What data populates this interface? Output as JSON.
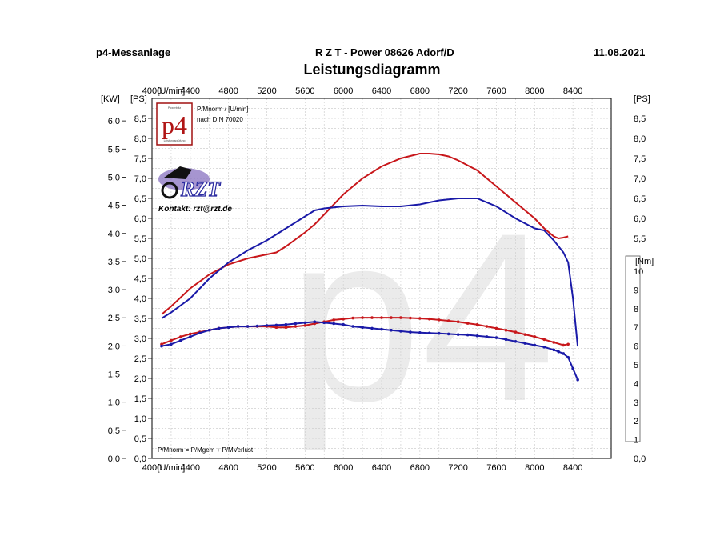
{
  "header": {
    "left": "p4-Messanlage",
    "center": "R Z T - Power   08626 Adorf/D",
    "right": "11.08.2021",
    "title": "Leistungsdiagramm"
  },
  "logo": {
    "p4_text": "p4",
    "p4_small_top": "Powerblitz",
    "p4_small_bottom": "Leistungsprüfung",
    "p4_note_line1": "P/Mnorm / [U/min]",
    "p4_note_line2": "nach DIN 70020",
    "rzt_text": "RZT",
    "contact": "Kontakt: rzt@rzt.de",
    "watermark": "p4"
  },
  "footer_note": "P/Mnorm = P/Mgem + P/MVerlust",
  "chart_data": {
    "type": "line",
    "title": "Leistungsdiagramm",
    "xlabel": "[U/min]",
    "x_unit_label": "[U/min]",
    "xlim": [
      4000,
      8800
    ],
    "x_ticks": [
      4000,
      4400,
      4800,
      5200,
      5600,
      6000,
      6400,
      6800,
      7200,
      7600,
      8000,
      8400
    ],
    "y_left_kw": {
      "label": "[KW]",
      "ylim": [
        0,
        6.4
      ],
      "ticks": [
        "0,0",
        "0,5",
        "1,0",
        "1,5",
        "2,0",
        "2,5",
        "3,0",
        "3,5",
        "4,0",
        "4,5",
        "5,0",
        "5,5",
        "6,0"
      ]
    },
    "y_left_ps": {
      "label": "[PS]",
      "ylim": [
        0,
        9.0
      ],
      "ticks": [
        "0,0",
        "0,5",
        "1,0",
        "1,5",
        "2,0",
        "2,5",
        "3,0",
        "3,5",
        "4,0",
        "4,5",
        "5,0",
        "5,5",
        "6,0",
        "6,5",
        "7,0",
        "7,5",
        "8,0",
        "8,5"
      ]
    },
    "y_right_top": {
      "label": "[PS]",
      "ticks": [
        "5,5",
        "6,0",
        "6,5",
        "7,0",
        "7,5",
        "8,0",
        "8,5"
      ]
    },
    "y_right_bottom": {
      "label": "[Nm]",
      "ticks": [
        "0,0",
        "1",
        "2",
        "3",
        "4",
        "5",
        "6",
        "7",
        "8",
        "9",
        "10"
      ]
    },
    "grid": true,
    "power_series": [
      {
        "color": "#c8171b",
        "unit": "PS",
        "x": [
          4100,
          4200,
          4400,
          4600,
          4800,
          5000,
          5200,
          5300,
          5400,
          5600,
          5700,
          5800,
          6000,
          6200,
          6400,
          6600,
          6800,
          6900,
          7000,
          7100,
          7200,
          7400,
          7600,
          7800,
          8000,
          8100,
          8200,
          8250,
          8300,
          8350
        ],
        "y": [
          3.6,
          3.8,
          4.25,
          4.6,
          4.85,
          5.0,
          5.1,
          5.15,
          5.3,
          5.65,
          5.85,
          6.1,
          6.6,
          7.0,
          7.3,
          7.5,
          7.62,
          7.62,
          7.6,
          7.55,
          7.45,
          7.2,
          6.8,
          6.4,
          6.0,
          5.75,
          5.55,
          5.5,
          5.52,
          5.55
        ]
      },
      {
        "color": "#1a1aa8",
        "unit": "PS",
        "x": [
          4100,
          4200,
          4400,
          4600,
          4800,
          5000,
          5200,
          5400,
          5600,
          5700,
          5800,
          6000,
          6200,
          6400,
          6600,
          6800,
          7000,
          7200,
          7400,
          7600,
          7800,
          8000,
          8100,
          8200,
          8300,
          8350,
          8400,
          8450
        ],
        "y": [
          3.5,
          3.65,
          4.0,
          4.5,
          4.9,
          5.2,
          5.45,
          5.75,
          6.05,
          6.2,
          6.25,
          6.3,
          6.32,
          6.3,
          6.3,
          6.35,
          6.45,
          6.5,
          6.5,
          6.3,
          6.0,
          5.75,
          5.7,
          5.45,
          5.15,
          4.9,
          4.0,
          2.8
        ]
      }
    ],
    "torque_series": [
      {
        "color": "#c8171b",
        "unit": "Nm",
        "x": [
          4100,
          4200,
          4300,
          4400,
          4500,
          4600,
          4700,
          4800,
          4900,
          5000,
          5100,
          5200,
          5300,
          5400,
          5500,
          5600,
          5700,
          5800,
          5900,
          6000,
          6100,
          6200,
          6300,
          6400,
          6500,
          6600,
          6700,
          6800,
          6900,
          7000,
          7100,
          7200,
          7300,
          7400,
          7500,
          7600,
          7700,
          7800,
          7900,
          8000,
          8100,
          8200,
          8300,
          8350
        ],
        "y": [
          6.1,
          6.3,
          6.5,
          6.65,
          6.75,
          6.85,
          6.95,
          7.0,
          7.05,
          7.05,
          7.05,
          7.05,
          7.0,
          7.0,
          7.05,
          7.1,
          7.2,
          7.3,
          7.4,
          7.45,
          7.5,
          7.52,
          7.52,
          7.52,
          7.52,
          7.52,
          7.5,
          7.48,
          7.45,
          7.4,
          7.35,
          7.3,
          7.22,
          7.15,
          7.05,
          6.95,
          6.85,
          6.75,
          6.62,
          6.5,
          6.35,
          6.2,
          6.05,
          6.1
        ]
      },
      {
        "color": "#1a1aa8",
        "unit": "Nm",
        "x": [
          4100,
          4200,
          4300,
          4400,
          4500,
          4600,
          4700,
          4800,
          4900,
          5000,
          5100,
          5200,
          5300,
          5400,
          5500,
          5600,
          5700,
          5800,
          5900,
          6000,
          6100,
          6200,
          6300,
          6400,
          6500,
          6600,
          6700,
          6800,
          6900,
          7000,
          7100,
          7200,
          7300,
          7400,
          7500,
          7600,
          7700,
          7800,
          7900,
          8000,
          8100,
          8200,
          8250,
          8300,
          8350,
          8400,
          8450
        ],
        "y": [
          6.0,
          6.1,
          6.3,
          6.5,
          6.7,
          6.85,
          6.95,
          7.0,
          7.05,
          7.05,
          7.07,
          7.1,
          7.12,
          7.15,
          7.2,
          7.25,
          7.3,
          7.25,
          7.2,
          7.15,
          7.05,
          7.0,
          6.95,
          6.9,
          6.85,
          6.8,
          6.75,
          6.72,
          6.7,
          6.68,
          6.65,
          6.62,
          6.6,
          6.55,
          6.5,
          6.45,
          6.35,
          6.25,
          6.15,
          6.05,
          5.95,
          5.8,
          5.7,
          5.6,
          5.4,
          4.8,
          4.2
        ]
      }
    ]
  }
}
